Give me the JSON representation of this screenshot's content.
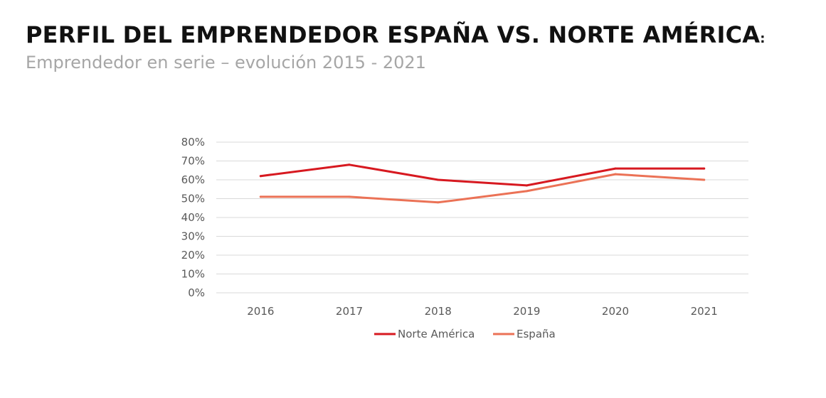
{
  "header": {
    "title": "PERFIL DEL EMPRENDEDOR ESPAÑA VS. NORTE AMÉRICA",
    "title_suffix": ":",
    "subtitle": "Emprendedor en serie – evolución 2015 - 2021"
  },
  "chart_data": {
    "type": "line",
    "categories": [
      "2016",
      "2017",
      "2018",
      "2019",
      "2020",
      "2021"
    ],
    "series": [
      {
        "name": "Norte América",
        "values": [
          62,
          68,
          60,
          57,
          66,
          66
        ],
        "color": "#d71920"
      },
      {
        "name": "España",
        "values": [
          51,
          51,
          48,
          54,
          63,
          60
        ],
        "color": "#eb7256"
      }
    ],
    "ylim": [
      0,
      80
    ],
    "yticks": [
      "0%",
      "10%",
      "20%",
      "30%",
      "40%",
      "50%",
      "60%",
      "70%",
      "80%"
    ],
    "ytick_values": [
      0,
      10,
      20,
      30,
      40,
      50,
      60,
      70,
      80
    ],
    "grid": true,
    "legend_position": "bottom",
    "grid_color": "#d9d9d9"
  }
}
